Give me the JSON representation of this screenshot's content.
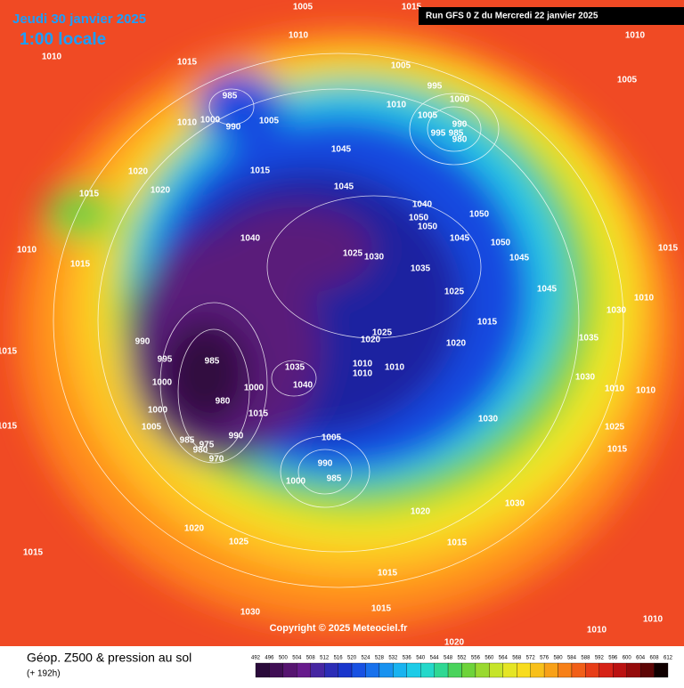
{
  "header": {
    "date": "Jeudi 30 janvier 2025",
    "time": "1:00 locale",
    "run": "Run GFS 0 Z du Mercredi 22 janvier 2025"
  },
  "copyright": "Copyright © 2025 Meteociel.fr",
  "footer": {
    "title": "Géop. Z500 & pression au sol",
    "lead": "(+ 192h)"
  },
  "colorbar": {
    "labels": [
      492,
      496,
      500,
      504,
      508,
      512,
      516,
      520,
      524,
      528,
      532,
      536,
      540,
      544,
      548,
      552,
      556,
      560,
      564,
      568,
      572,
      576,
      580,
      584,
      588,
      592,
      596,
      600,
      604,
      608,
      612
    ]
  },
  "pressure_labels": [
    1005,
    1015,
    1010,
    1010,
    1015,
    1005,
    995,
    1000,
    985,
    1000,
    990,
    1005,
    1010,
    1010,
    1005,
    990,
    985,
    995,
    980,
    1010,
    1005,
    1020,
    1015,
    1020,
    1015,
    1045,
    1045,
    1040,
    1050,
    1050,
    1050,
    1045,
    1050,
    1045,
    1040,
    1025,
    1030,
    1035,
    1025,
    1045,
    1015,
    1010,
    1030,
    1035,
    1015,
    1025,
    1020,
    1020,
    990,
    995,
    1000,
    985,
    1010,
    1010,
    1010,
    1035,
    1040,
    1030,
    1030,
    1000,
    1005,
    980,
    1000,
    1015,
    985,
    975,
    980,
    970,
    990,
    1005,
    1025,
    1015,
    990,
    985,
    1000,
    1020,
    1030,
    1020,
    1025,
    1015,
    1015,
    1015,
    1030,
    1015,
    1020,
    1010,
    1010,
    1015,
    1015,
    1010,
    1015,
    1010,
    1010
  ]
}
